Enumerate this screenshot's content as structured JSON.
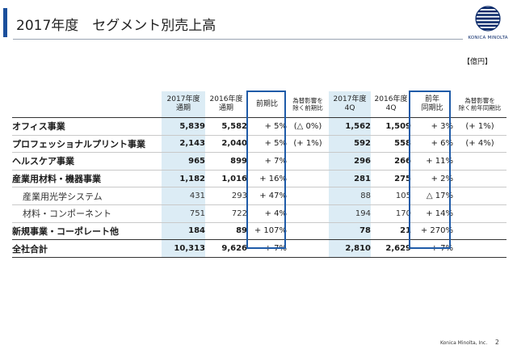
{
  "header": {
    "title": "2017年度　セグメント別売上高",
    "logo_text": "KONICA MINOLTA",
    "unit": "【億円】"
  },
  "table": {
    "headers": [
      "",
      "2017年度\n通期",
      "2016年度\n通期",
      "前期比",
      "為替影響を\n除く前期比",
      "2017年度\n4Q",
      "2016年度\n4Q",
      "前年\n同期比",
      "為替影響を\n除く前年同期比"
    ],
    "rows": [
      {
        "name": "オフィス事業",
        "fy17": "5,839",
        "fy16": "5,582",
        "yoy": "+ 5%",
        "yoy_fx": "(△ 0%)",
        "q4_17": "1,562",
        "q4_16": "1,509",
        "qoq": "+ 3%",
        "qoq_fx": "(+ 1%)"
      },
      {
        "name": "プロフェッショナルプリント事業",
        "fy17": "2,143",
        "fy16": "2,040",
        "yoy": "+ 5%",
        "yoy_fx": "(+ 1%)",
        "q4_17": "592",
        "q4_16": "558",
        "qoq": "+ 6%",
        "qoq_fx": "(+ 4%)"
      },
      {
        "name": "ヘルスケア事業",
        "fy17": "965",
        "fy16": "899",
        "yoy": "+ 7%",
        "yoy_fx": "",
        "q4_17": "296",
        "q4_16": "266",
        "qoq": "+ 11%",
        "qoq_fx": ""
      },
      {
        "name": "産業用材料・機器事業",
        "fy17": "1,182",
        "fy16": "1,016",
        "yoy": "+ 16%",
        "yoy_fx": "",
        "q4_17": "281",
        "q4_16": "275",
        "qoq": "+ 2%",
        "qoq_fx": ""
      },
      {
        "name": "産業用光学システム",
        "fy17": "431",
        "fy16": "293",
        "yoy": "+ 47%",
        "yoy_fx": "",
        "q4_17": "88",
        "q4_16": "105",
        "qoq": "△ 17%",
        "qoq_fx": ""
      },
      {
        "name": "材料・コンポーネント",
        "fy17": "751",
        "fy16": "722",
        "yoy": "+ 4%",
        "yoy_fx": "",
        "q4_17": "194",
        "q4_16": "170",
        "qoq": "+ 14%",
        "qoq_fx": ""
      },
      {
        "name": "新規事業・コーポレート他",
        "fy17": "184",
        "fy16": "89",
        "yoy": "+ 107%",
        "yoy_fx": "",
        "q4_17": "78",
        "q4_16": "21",
        "qoq": "+ 270%",
        "qoq_fx": ""
      }
    ],
    "total": {
      "name": "全社合計",
      "fy17": "10,313",
      "fy16": "9,626",
      "yoy": "+ 7%",
      "yoy_fx": "",
      "q4_17": "2,810",
      "q4_16": "2,629",
      "qoq": "+ 7%",
      "qoq_fx": ""
    }
  },
  "footer": {
    "company": "Konica Minolta, Inc.",
    "page": "2"
  },
  "colors": {
    "accent": "#1b4f9c",
    "highlight_box": "#1f5ba8",
    "column_shade": "#dcecf5"
  }
}
